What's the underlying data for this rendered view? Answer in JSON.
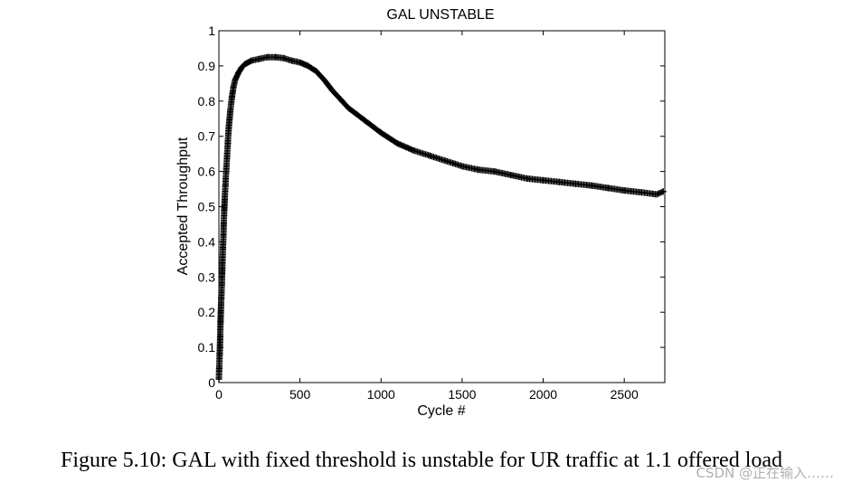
{
  "chart_data": {
    "type": "scatter",
    "marker": "+",
    "color": "#000000",
    "title": "GAL UNSTABLE",
    "xlabel": "Cycle #",
    "ylabel": "Accepted Throughput",
    "xlim": [
      0,
      2750
    ],
    "ylim": [
      0,
      1
    ],
    "xticks": [
      0,
      500,
      1000,
      1500,
      2000,
      2500
    ],
    "xtick_labels": [
      "0",
      "500",
      "1000",
      "1500",
      "2000",
      "2500"
    ],
    "yticks": [
      0,
      0.1,
      0.2,
      0.3,
      0.4,
      0.5,
      0.6,
      0.7,
      0.8,
      0.9,
      1
    ],
    "ytick_labels": [
      "0",
      "0.1",
      "0.2",
      "0.3",
      "0.4",
      "0.5",
      "0.6",
      "0.7",
      "0.8",
      "0.9",
      "1"
    ],
    "grid": false,
    "series": [
      {
        "name": "GAL",
        "x": [
          0,
          2,
          5,
          8,
          10,
          12,
          15,
          18,
          20,
          22,
          25,
          28,
          30,
          33,
          36,
          40,
          45,
          50,
          55,
          60,
          70,
          80,
          90,
          100,
          120,
          140,
          160,
          180,
          200,
          250,
          300,
          350,
          400,
          450,
          500,
          550,
          600,
          650,
          700,
          750,
          800,
          900,
          1000,
          1100,
          1200,
          1300,
          1400,
          1500,
          1600,
          1700,
          1800,
          1900,
          2000,
          2100,
          2200,
          2300,
          2400,
          2500,
          2600,
          2700,
          2740
        ],
        "y": [
          0.01,
          0.04,
          0.08,
          0.13,
          0.17,
          0.2,
          0.24,
          0.28,
          0.31,
          0.34,
          0.38,
          0.42,
          0.45,
          0.49,
          0.52,
          0.56,
          0.6,
          0.64,
          0.68,
          0.72,
          0.77,
          0.81,
          0.84,
          0.86,
          0.88,
          0.895,
          0.905,
          0.91,
          0.915,
          0.92,
          0.925,
          0.925,
          0.922,
          0.915,
          0.91,
          0.9,
          0.885,
          0.86,
          0.83,
          0.805,
          0.78,
          0.745,
          0.71,
          0.68,
          0.66,
          0.645,
          0.63,
          0.615,
          0.605,
          0.6,
          0.59,
          0.58,
          0.575,
          0.57,
          0.565,
          0.56,
          0.553,
          0.546,
          0.541,
          0.535,
          0.543
        ]
      }
    ]
  },
  "caption": "Figure 5.10: GAL with fixed threshold is unstable for UR traffic at 1.1 offered load",
  "watermark": "CSDN @正在输入……"
}
